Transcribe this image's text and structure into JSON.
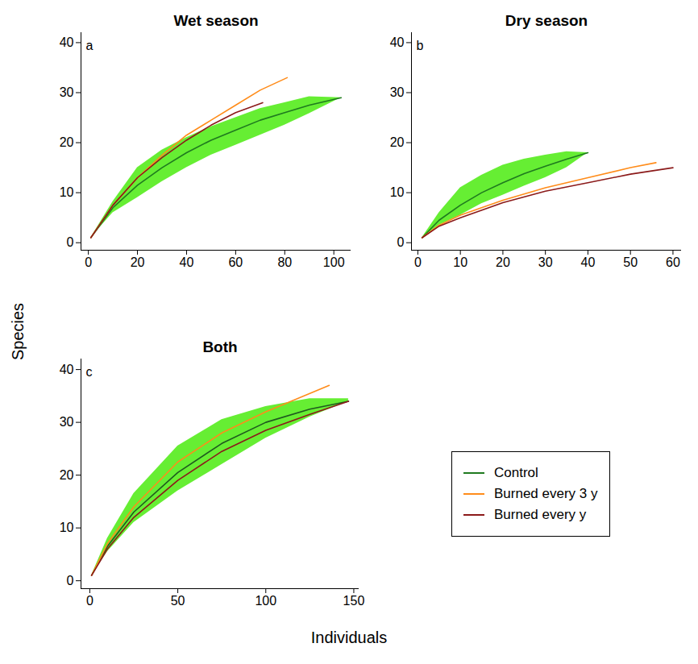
{
  "chart_data": [
    {
      "type": "line",
      "title": "Wet season",
      "annotation": "a",
      "xlim": [
        -3,
        107
      ],
      "xticks": [
        0,
        20,
        40,
        60,
        80,
        100
      ],
      "ylim": [
        -1.5,
        42
      ],
      "yticks": [
        0,
        10,
        20,
        30,
        40
      ],
      "series": [
        {
          "name": "Control",
          "color": "#1f7a1f",
          "x": [
            1,
            10,
            20,
            30,
            40,
            50,
            60,
            70,
            80,
            90,
            103
          ],
          "values": [
            1,
            7,
            11.5,
            15,
            18,
            20.5,
            22.5,
            24.5,
            26,
            27.5,
            29
          ],
          "lower": [
            1,
            6,
            9,
            12.2,
            15,
            17.5,
            19.5,
            21.5,
            23.5,
            25.8,
            29
          ],
          "upper": [
            1,
            8.2,
            15,
            18.5,
            21,
            23.2,
            25,
            26.8,
            28,
            29.2,
            29
          ]
        },
        {
          "name": "Burned every 3 y",
          "color": "#ff8c1a",
          "x": [
            1,
            10,
            20,
            30,
            40,
            50,
            60,
            70,
            81
          ],
          "values": [
            1,
            7.5,
            13,
            17.5,
            21.5,
            24.5,
            27.5,
            30.5,
            33
          ]
        },
        {
          "name": "Burned every y",
          "color": "#8b1a1a",
          "x": [
            1,
            10,
            20,
            30,
            40,
            50,
            60,
            71
          ],
          "values": [
            1,
            7.5,
            13,
            17,
            20.5,
            23.5,
            26,
            28
          ]
        }
      ]
    },
    {
      "type": "line",
      "title": "Dry season",
      "annotation": "b",
      "xlim": [
        -1.5,
        62
      ],
      "xticks": [
        0,
        10,
        20,
        30,
        40,
        50,
        60
      ],
      "ylim": [
        -1.5,
        42
      ],
      "yticks": [
        0,
        10,
        20,
        30,
        40
      ],
      "series": [
        {
          "name": "Control",
          "color": "#1f7a1f",
          "x": [
            1,
            5,
            10,
            15,
            20,
            25,
            30,
            35,
            40
          ],
          "values": [
            1,
            4.5,
            7.5,
            10,
            12,
            13.8,
            15.3,
            16.7,
            18
          ],
          "lower": [
            1,
            3.5,
            5.5,
            7.8,
            9.5,
            11.3,
            13,
            15,
            18
          ],
          "upper": [
            1,
            6,
            11,
            13.5,
            15.5,
            16.7,
            17.5,
            18.2,
            18
          ]
        },
        {
          "name": "Burned every 3 y",
          "color": "#ff8c1a",
          "x": [
            1,
            5,
            10,
            20,
            30,
            40,
            50,
            56
          ],
          "values": [
            1,
            3.5,
            5.5,
            8.5,
            11,
            13,
            15,
            16
          ]
        },
        {
          "name": "Burned every y",
          "color": "#8b1a1a",
          "x": [
            1,
            5,
            10,
            20,
            30,
            40,
            50,
            60
          ],
          "values": [
            1,
            3.3,
            5,
            8,
            10.3,
            12,
            13.7,
            15
          ]
        }
      ]
    },
    {
      "type": "line",
      "title": "Both",
      "annotation": "c",
      "xlim": [
        -5,
        153
      ],
      "xticks": [
        0,
        50,
        100,
        150
      ],
      "ylim": [
        -1.5,
        42
      ],
      "yticks": [
        0,
        10,
        20,
        30,
        40
      ],
      "series": [
        {
          "name": "Control",
          "color": "#1f5a1f",
          "x": [
            1,
            10,
            25,
            50,
            75,
            100,
            125,
            147
          ],
          "values": [
            1,
            6.5,
            13,
            20.5,
            26,
            30,
            32.5,
            34
          ],
          "lower": [
            1,
            5.5,
            11,
            17,
            22,
            27,
            31,
            34
          ],
          "upper": [
            1,
            8,
            16.5,
            25.5,
            30.5,
            33,
            34.5,
            34.5
          ]
        },
        {
          "name": "Burned every 3 y",
          "color": "#ff8c1a",
          "x": [
            1,
            10,
            25,
            50,
            75,
            100,
            136
          ],
          "values": [
            1,
            7,
            14,
            22.5,
            28,
            32,
            37
          ]
        },
        {
          "name": "Burned every y",
          "color": "#8b1a1a",
          "x": [
            1,
            10,
            25,
            50,
            75,
            100,
            125,
            147
          ],
          "values": [
            1,
            6,
            12,
            19,
            24.5,
            28.5,
            31.5,
            34
          ]
        }
      ]
    }
  ],
  "x_label": "Individuals",
  "y_label": "Species",
  "legend": "bottom right"
}
